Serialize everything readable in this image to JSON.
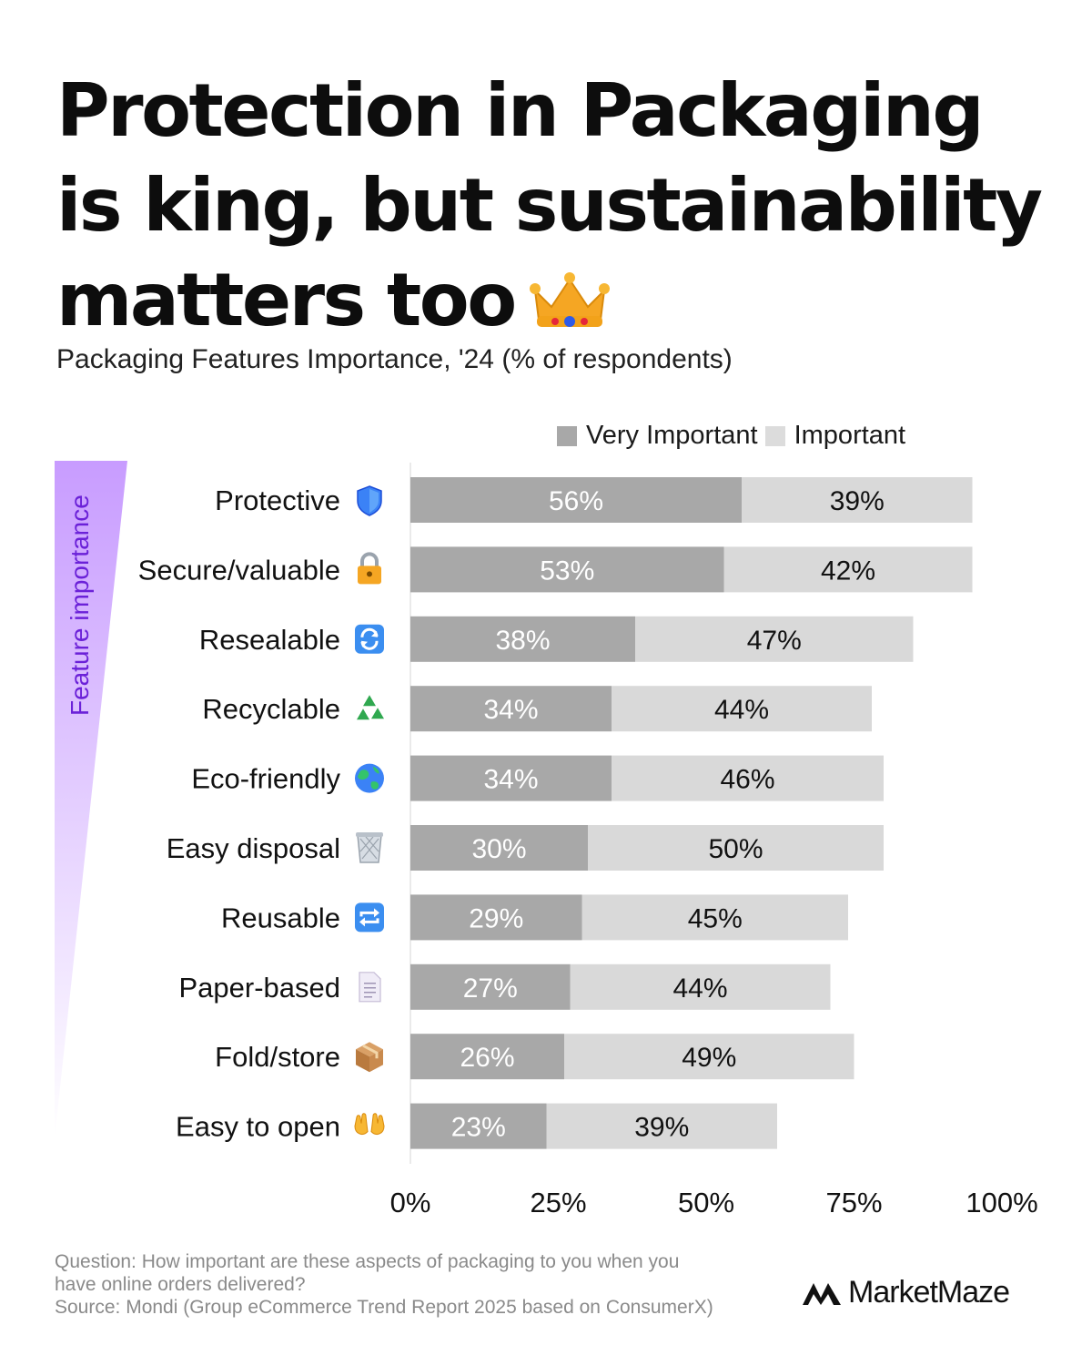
{
  "header": {
    "title_lines": [
      "Protection in Packaging",
      "is king, but sustainability",
      "matters too"
    ],
    "title_emoji_icon": "crown-icon",
    "subtitle": "Packaging Features Importance, '24 (% of respondents)"
  },
  "legend": {
    "very_important": "Very Important",
    "important": "Important"
  },
  "side_label": "Feature importance",
  "colors": {
    "very_important": "#a8a8a8",
    "important": "#d9d9d9",
    "gradient_top": "#c89cff",
    "gradient_bottom": "#ffffff",
    "side_label": "#6b21d8"
  },
  "chart_data": {
    "type": "bar",
    "orientation": "horizontal",
    "stacked": true,
    "categories": [
      "Protective",
      "Secure/valuable",
      "Resealable",
      "Recyclable",
      "Eco-friendly",
      "Easy disposal",
      "Reusable",
      "Paper-based",
      "Fold/store",
      "Easy to open"
    ],
    "category_icons": [
      "shield-icon",
      "lock-icon",
      "refresh-arrows-icon",
      "recycle-icon",
      "globe-icon",
      "wastebasket-icon",
      "repeat-icon",
      "document-icon",
      "package-icon",
      "open-hands-icon"
    ],
    "series": [
      {
        "name": "Very Important",
        "values": [
          56,
          53,
          38,
          34,
          34,
          30,
          29,
          27,
          26,
          23
        ]
      },
      {
        "name": "Important",
        "values": [
          39,
          42,
          47,
          44,
          46,
          50,
          45,
          44,
          49,
          39
        ]
      }
    ],
    "value_suffix": "%",
    "xlim": [
      0,
      100
    ],
    "xticks": [
      "0%",
      "25%",
      "50%",
      "75%",
      "100%"
    ],
    "legend_position": "top-right",
    "grid": false
  },
  "footer": {
    "question_line1": "Question: How important are these aspects of packaging to you when you",
    "question_line2": "have online orders delivered?",
    "source": "Source: Mondi (Group eCommerce Trend Report 2025 based on ConsumerX)",
    "brand": "MarketMaze",
    "brand_icon": "marketmaze-logo-icon"
  }
}
